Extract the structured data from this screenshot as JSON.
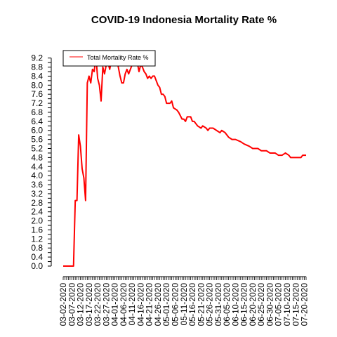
{
  "chart_data": {
    "type": "line",
    "title": "COVID-19 Indonesia Mortality Rate %",
    "xlabel": "",
    "ylabel": "",
    "ylim": [
      0,
      9.5
    ],
    "x_start": "03-02-2020",
    "x_end": "07-21-2020",
    "legend_position": "top-left",
    "grid": false,
    "y_ticks": [
      "0.0",
      "0.2",
      "0.4",
      "0.6",
      "0.8",
      "1.0",
      "1.2",
      "1.4",
      "1.6",
      "1.8",
      "2.0",
      "2.2",
      "2.4",
      "2.6",
      "2.8",
      "3.0",
      "3.2",
      "3.4",
      "3.6",
      "3.8",
      "4.0",
      "4.2",
      "4.4",
      "4.6",
      "4.8",
      "5.0",
      "5.2",
      "5.4",
      "5.6",
      "5.8",
      "6.0",
      "6.2",
      "6.4",
      "6.6",
      "6.8",
      "7.0",
      "7.2",
      "7.4",
      "7.6",
      "7.8",
      "8.0",
      "8.2",
      "8.4",
      "8.6",
      "8.8",
      "9.0",
      "9.2"
    ],
    "y_tick_labels_shown": [
      "0.0",
      "0.4",
      "0.8",
      "1.2",
      "1.6",
      "2.0",
      "2.4",
      "2.8",
      "3.2",
      "3.6",
      "4.0",
      "4.4",
      "4.8",
      "5.2",
      "5.6",
      "6.0",
      "6.4",
      "6.8",
      "7.2",
      "7.6",
      "8.0",
      "8.4",
      "8.8",
      "9.2"
    ],
    "x_tick_labels": [
      "03-02-2020",
      "03-07-2020",
      "03-12-2020",
      "03-17-2020",
      "03-22-2020",
      "03-27-2020",
      "04-01-2020",
      "04-06-2020",
      "04-11-2020",
      "04-16-2020",
      "04-21-2020",
      "04-26-2020",
      "05-01-2020",
      "05-06-2020",
      "05-11-2020",
      "05-16-2020",
      "05-21-2020",
      "05-26-2020",
      "05-31-2020",
      "06-05-2020",
      "06-10-2020",
      "06-15-2020",
      "06-20-2020",
      "06-25-2020",
      "06-30-2020",
      "07-05-2020",
      "07-10-2020",
      "07-15-2020",
      "07-20-2020"
    ],
    "series": [
      {
        "name": "Total Mortality Rate %",
        "color": "#ff0000",
        "points": [
          [
            "03-02-2020",
            0.0
          ],
          [
            "03-08-2020",
            0.0
          ],
          [
            "03-09-2020",
            2.9
          ],
          [
            "03-10-2020",
            2.9
          ],
          [
            "03-11-2020",
            5.8
          ],
          [
            "03-12-2020",
            5.3
          ],
          [
            "03-13-2020",
            4.3
          ],
          [
            "03-14-2020",
            3.9
          ],
          [
            "03-15-2020",
            2.9
          ],
          [
            "03-16-2020",
            8.1
          ],
          [
            "03-17-2020",
            8.4
          ],
          [
            "03-18-2020",
            8.1
          ],
          [
            "03-19-2020",
            8.7
          ],
          [
            "03-20-2020",
            8.6
          ],
          [
            "03-21-2020",
            9.3
          ],
          [
            "03-22-2020",
            8.3
          ],
          [
            "03-23-2020",
            8.0
          ],
          [
            "03-24-2020",
            7.3
          ],
          [
            "03-25-2020",
            8.8
          ],
          [
            "03-26-2020",
            8.5
          ],
          [
            "03-27-2020",
            8.9
          ],
          [
            "03-28-2020",
            9.0
          ],
          [
            "03-29-2020",
            8.7
          ],
          [
            "03-30-2020",
            9.1
          ],
          [
            "03-31-2020",
            9.5
          ],
          [
            "04-01-2020",
            9.5
          ],
          [
            "04-02-2020",
            9.2
          ],
          [
            "04-03-2020",
            8.8
          ],
          [
            "04-04-2020",
            8.4
          ],
          [
            "04-05-2020",
            8.1
          ],
          [
            "04-06-2020",
            8.1
          ],
          [
            "04-07-2020",
            8.5
          ],
          [
            "04-08-2020",
            8.7
          ],
          [
            "04-09-2020",
            8.5
          ],
          [
            "04-10-2020",
            8.7
          ],
          [
            "04-11-2020",
            8.9
          ],
          [
            "04-12-2020",
            9.5
          ],
          [
            "04-13-2020",
            9.1
          ],
          [
            "04-14-2020",
            9.0
          ],
          [
            "04-15-2020",
            8.6
          ],
          [
            "04-16-2020",
            8.9
          ],
          [
            "04-17-2020",
            8.8
          ],
          [
            "04-18-2020",
            8.6
          ],
          [
            "04-19-2020",
            8.5
          ],
          [
            "04-20-2020",
            8.3
          ],
          [
            "04-21-2020",
            8.4
          ],
          [
            "04-22-2020",
            8.3
          ],
          [
            "04-23-2020",
            8.4
          ],
          [
            "04-24-2020",
            8.4
          ],
          [
            "04-25-2020",
            8.2
          ],
          [
            "04-26-2020",
            8.0
          ],
          [
            "04-27-2020",
            7.9
          ],
          [
            "04-28-2020",
            7.6
          ],
          [
            "04-29-2020",
            7.6
          ],
          [
            "04-30-2020",
            7.5
          ],
          [
            "05-01-2020",
            7.2
          ],
          [
            "05-03-2020",
            7.2
          ],
          [
            "05-04-2020",
            7.3
          ],
          [
            "05-05-2020",
            7.0
          ],
          [
            "05-07-2020",
            6.9
          ],
          [
            "05-08-2020",
            6.8
          ],
          [
            "05-10-2020",
            6.5
          ],
          [
            "05-11-2020",
            6.5
          ],
          [
            "05-12-2020",
            6.4
          ],
          [
            "05-13-2020",
            6.6
          ],
          [
            "05-15-2020",
            6.6
          ],
          [
            "05-16-2020",
            6.4
          ],
          [
            "05-17-2020",
            6.4
          ],
          [
            "05-18-2020",
            6.3
          ],
          [
            "05-19-2020",
            6.2
          ],
          [
            "05-21-2020",
            6.1
          ],
          [
            "05-22-2020",
            6.2
          ],
          [
            "05-24-2020",
            6.1
          ],
          [
            "05-25-2020",
            6.0
          ],
          [
            "05-26-2020",
            6.1
          ],
          [
            "05-28-2020",
            6.1
          ],
          [
            "05-30-2020",
            6.0
          ],
          [
            "06-01-2020",
            5.9
          ],
          [
            "06-02-2020",
            6.0
          ],
          [
            "06-04-2020",
            5.9
          ],
          [
            "06-06-2020",
            5.7
          ],
          [
            "06-08-2020",
            5.6
          ],
          [
            "06-10-2020",
            5.6
          ],
          [
            "06-13-2020",
            5.5
          ],
          [
            "06-15-2020",
            5.4
          ],
          [
            "06-18-2020",
            5.3
          ],
          [
            "06-20-2020",
            5.2
          ],
          [
            "06-23-2020",
            5.2
          ],
          [
            "06-25-2020",
            5.1
          ],
          [
            "06-28-2020",
            5.1
          ],
          [
            "06-30-2020",
            5.0
          ],
          [
            "07-03-2020",
            5.0
          ],
          [
            "07-05-2020",
            4.9
          ],
          [
            "07-07-2020",
            4.9
          ],
          [
            "07-09-2020",
            5.0
          ],
          [
            "07-11-2020",
            4.9
          ],
          [
            "07-12-2020",
            4.8
          ],
          [
            "07-14-2020",
            4.8
          ],
          [
            "07-15-2020",
            4.8
          ],
          [
            "07-17-2020",
            4.8
          ],
          [
            "07-18-2020",
            4.8
          ],
          [
            "07-19-2020",
            4.9
          ],
          [
            "07-20-2020",
            4.9
          ],
          [
            "07-21-2020",
            4.9
          ]
        ]
      }
    ]
  }
}
